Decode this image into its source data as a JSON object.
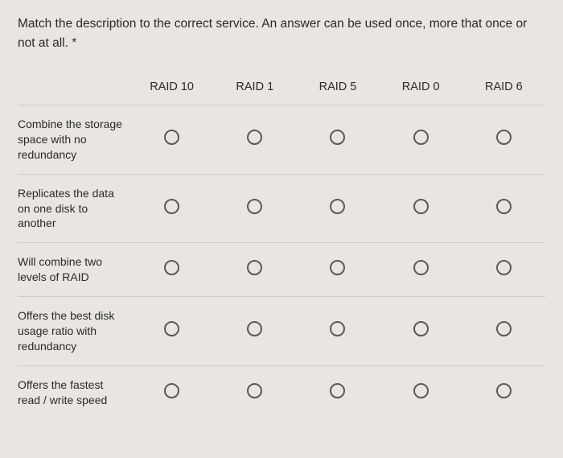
{
  "question": "Match the description to the correct service. An answer can be used once, more that once or not at all. *",
  "columns": [
    "RAID 10",
    "RAID 1",
    "RAID 5",
    "RAID 0",
    "RAID 6"
  ],
  "rows": [
    "Combine the storage space with no redundancy",
    "Replicates the data on one disk to another",
    "Will combine two levels of RAID",
    "Offers the best disk usage ratio with redundancy",
    "Offers the fastest read / write speed"
  ],
  "colors": {
    "background": "#e8e5e2",
    "text": "#2b2b2b",
    "divider": "#cfcbc7",
    "radio_border": "#5a5a5a"
  },
  "font_sizes": {
    "question": 15.5,
    "header": 14.5,
    "row_label": 14
  }
}
